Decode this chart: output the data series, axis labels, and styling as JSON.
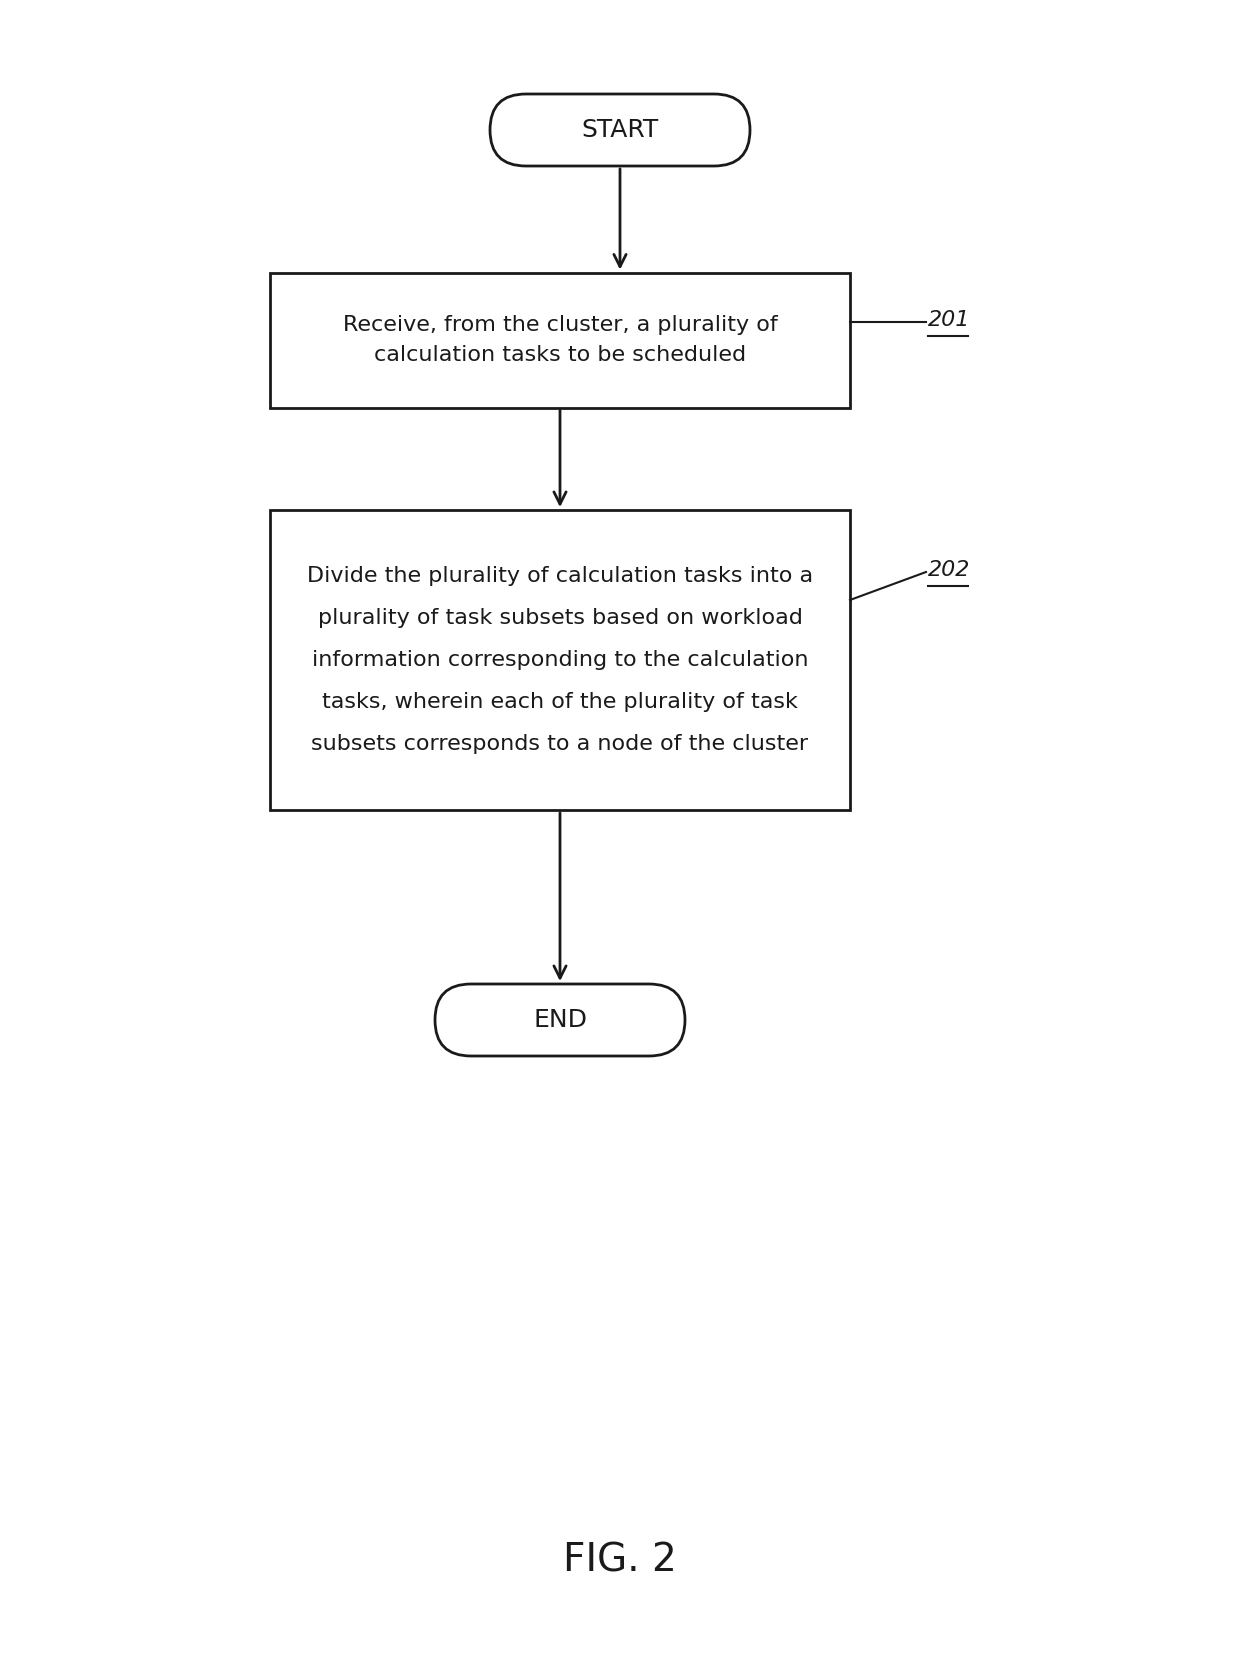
{
  "bg_color": "#ffffff",
  "fig_caption": "FIG. 2",
  "caption_fontsize": 28,
  "start_label": "START",
  "end_label": "END",
  "box201_lines": [
    "Receive, from the cluster, a plurality of",
    "calculation tasks to be scheduled"
  ],
  "box202_lines": [
    "Divide the plurality of calculation tasks into a",
    "plurality of task subsets based on workload",
    "information corresponding to the calculation",
    "tasks, wherein each of the plurality of task",
    "subsets corresponds to a node of the cluster"
  ],
  "ref201": "201",
  "ref202": "202",
  "text_fontsize": 16,
  "ref_fontsize": 16,
  "terminal_fontsize": 18,
  "box_edge_color": "#1a1a1a",
  "box_face_color": "#ffffff",
  "arrow_color": "#1a1a1a",
  "text_color": "#1a1a1a",
  "ref_color": "#1a1a1a"
}
